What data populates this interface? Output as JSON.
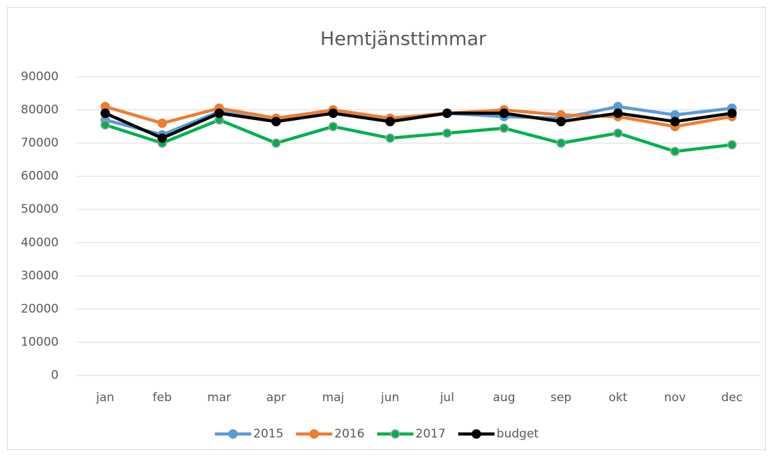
{
  "chart_data": {
    "type": "line",
    "title": "Hemtjänsttimmar",
    "categories": [
      "jan",
      "feb",
      "mar",
      "apr",
      "maj",
      "jun",
      "jul",
      "aug",
      "sep",
      "okt",
      "nov",
      "dec"
    ],
    "series": [
      {
        "name": "2015",
        "color": "#5b9bd5",
        "values": [
          77000,
          72500,
          79500,
          76500,
          79000,
          76500,
          79000,
          78000,
          77500,
          81000,
          78500,
          80500
        ]
      },
      {
        "name": "2016",
        "color": "#ed7d31",
        "values": [
          81000,
          76000,
          80500,
          77500,
          80000,
          77500,
          79000,
          80000,
          78500,
          78000,
          75000,
          78000
        ]
      },
      {
        "name": "2017",
        "color": "#00b050",
        "values": [
          75500,
          70000,
          77000,
          70000,
          75000,
          71500,
          73000,
          74500,
          70000,
          73000,
          67500,
          69500
        ]
      },
      {
        "name": "budget",
        "color": "#000000",
        "values": [
          79000,
          71500,
          79000,
          76500,
          79000,
          76500,
          79000,
          79000,
          76500,
          79000,
          76500,
          79000
        ]
      }
    ],
    "ylim": [
      0,
      90000
    ],
    "yticks": [
      0,
      10000,
      20000,
      30000,
      40000,
      50000,
      60000,
      70000,
      80000,
      90000
    ],
    "grid": true,
    "legend": "bottom"
  }
}
